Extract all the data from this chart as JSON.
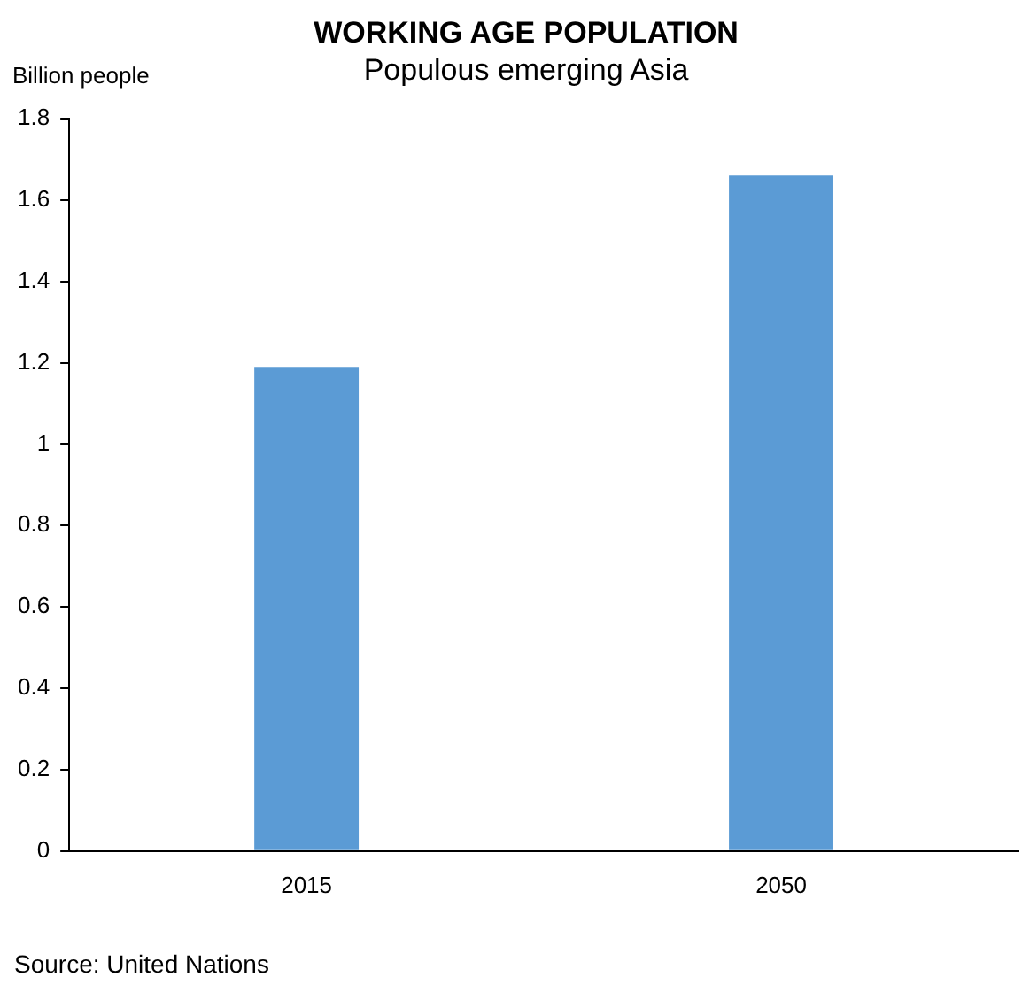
{
  "chart_data": {
    "type": "bar",
    "title": "WORKING AGE POPULATION",
    "subtitle": "Populous emerging Asia",
    "ylabel": "Billion people",
    "annotations": [
      "Source: United Nations"
    ],
    "categories": [
      "2015",
      "2050"
    ],
    "values": [
      1.19,
      1.66
    ],
    "color": "#5b9bd5",
    "ylim": [
      0,
      1.8
    ],
    "yticks": [
      0,
      0.2,
      0.4,
      0.6,
      0.8,
      1,
      1.2,
      1.4,
      1.6,
      1.8
    ],
    "grid": false,
    "legend": false
  }
}
